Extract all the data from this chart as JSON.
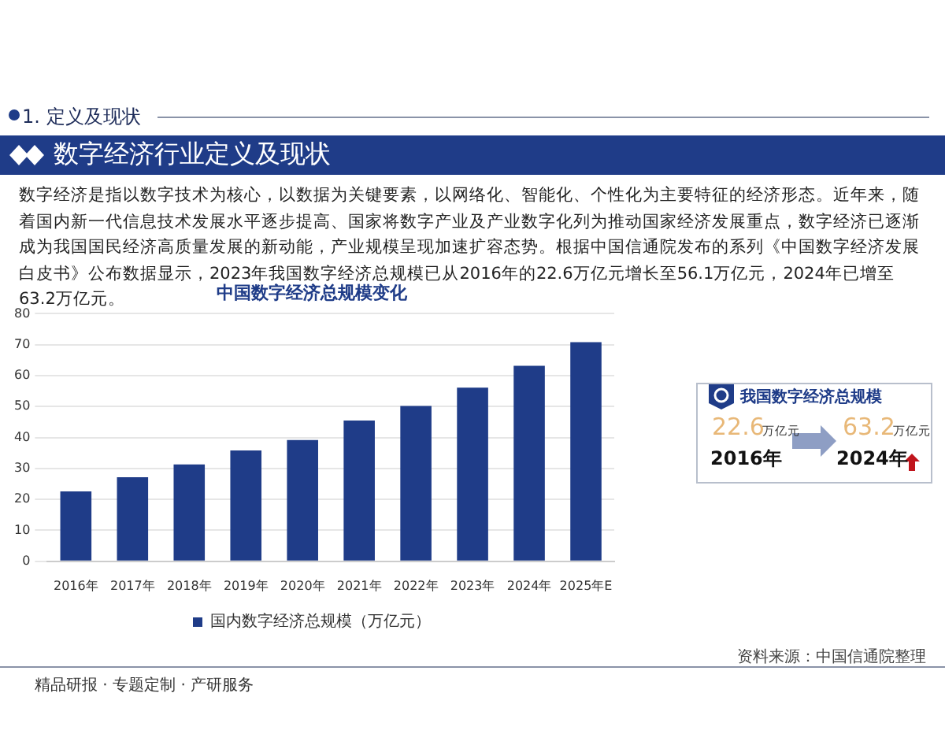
{
  "chart_data": {
    "type": "bar",
    "title": "中国数字经济总规模变化",
    "categories": [
      "2016年",
      "2017年",
      "2018年",
      "2019年",
      "2020年",
      "2021年",
      "2022年",
      "2023年",
      "2024年",
      "2025年E"
    ],
    "series": [
      {
        "name": "国内数字经济总规模（万亿元）",
        "color": "#1f3c88",
        "values": [
          22.6,
          27.2,
          31.3,
          35.8,
          39.2,
          45.5,
          50.2,
          56.1,
          63.2,
          70.8
        ]
      }
    ],
    "ylim": [
      0,
      80
    ],
    "yticks": [
      0,
      10,
      20,
      30,
      40,
      50,
      60,
      70,
      80
    ],
    "grid": "y",
    "legend": "bottom",
    "annotations": [
      "1. 定义及现状",
      "数字经济行业定义及现状",
      "数字经济是指以数字技术为核心，以数据为关键要素，以网络化、智能化、个性化为主要特征的经济形态。近年来，随着国内新一代信息技术发展水平逐步提高、国家将数字产业及产业数字化列为推动国家经济发展重点，数字经济已逐渐成为我国国民经济高质量发展的新动能，产业规模呈现加速扩容态势。根据中国信通院发布的系列《中国数字经济发展白皮书》公布数据显示，2023年我国数字经济总规模已从2016年的22.6万亿元增长至56.1万亿元，2024年已增至63.2万亿元。",
      "我国数字经济总规模",
      "22.6",
      "万亿元",
      "2016年",
      "63.2",
      "万亿元",
      "2024年",
      "资料来源：中国信通院整理",
      "精品研报 · 专题定制 · 产研服务"
    ]
  }
}
